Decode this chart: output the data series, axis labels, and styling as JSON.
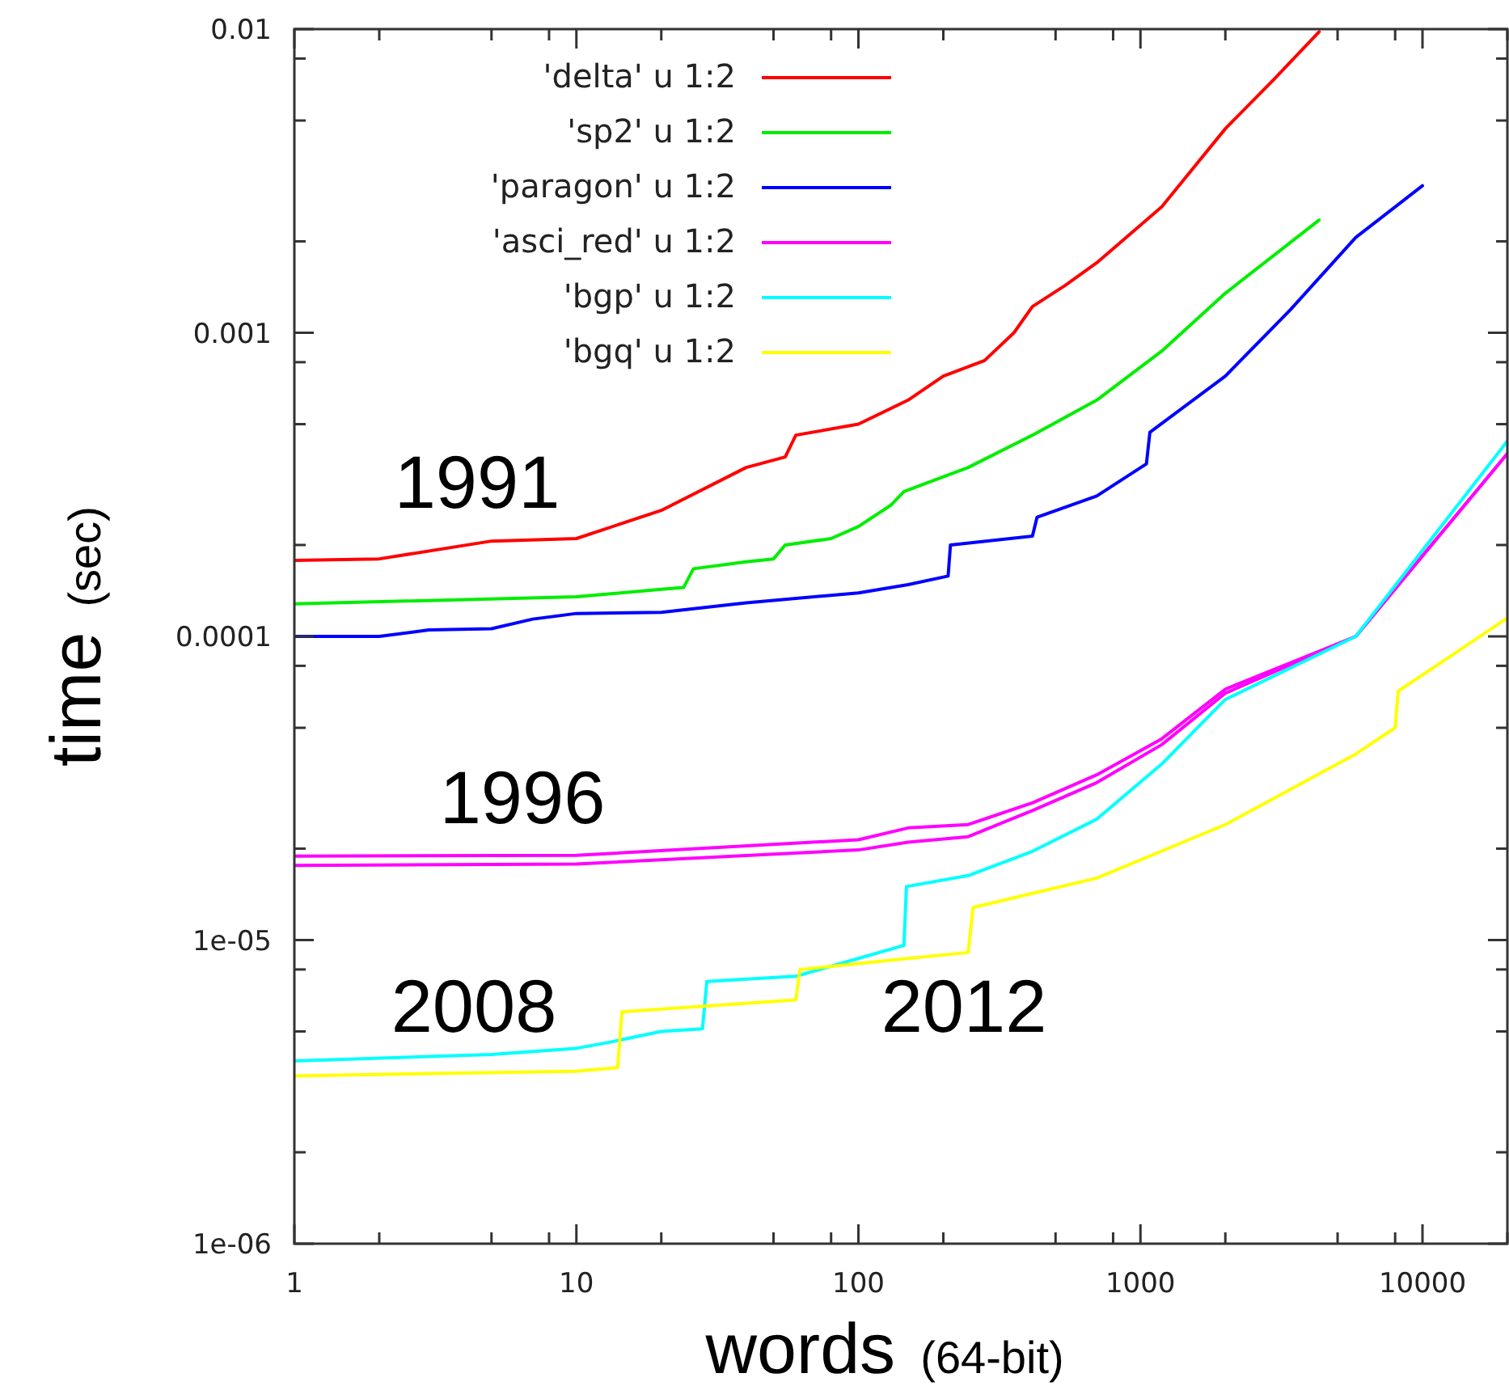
{
  "chart_data": {
    "type": "line",
    "xlabel": "words  (64-bit)",
    "ylabel": "time  (sec)",
    "log": "xy",
    "legend": "top left",
    "line_style": "solid",
    "xlim": [
      1,
      20000
    ],
    "ylim": [
      1e-06,
      0.01
    ],
    "xticks": [
      1,
      {
        "value": 2,
        "label": null
      },
      {
        "value": 5,
        "label": null
      },
      {
        "value": 8,
        "label": null
      },
      10,
      {
        "value": 20,
        "label": null
      },
      {
        "value": 50,
        "label": null
      },
      {
        "value": 80,
        "label": null
      },
      100,
      {
        "value": 200,
        "label": null
      },
      {
        "value": 500,
        "label": null
      },
      {
        "value": 800,
        "label": null
      },
      1000,
      {
        "value": 2000,
        "label": null
      },
      {
        "value": 5000,
        "label": null
      },
      {
        "value": 8000,
        "label": null
      },
      10000,
      {
        "value": 20000,
        "label": null
      }
    ],
    "yticks": [
      {
        "value": 1e-06,
        "label": "1e-06"
      },
      {
        "value": 2e-06,
        "label": null
      },
      {
        "value": 5e-06,
        "label": null
      },
      {
        "value": 8e-06,
        "label": null
      },
      {
        "value": 1e-05,
        "label": "1e-05"
      },
      {
        "value": 2e-05,
        "label": null
      },
      {
        "value": 5e-05,
        "label": null
      },
      {
        "value": 8e-05,
        "label": null
      },
      {
        "value": 0.0001,
        "label": "0.0001"
      },
      {
        "value": 0.0002,
        "label": null
      },
      {
        "value": 0.0005,
        "label": null
      },
      {
        "value": 0.0008,
        "label": null
      },
      {
        "value": 0.001,
        "label": "0.001"
      },
      {
        "value": 0.002,
        "label": null
      },
      {
        "value": 0.005,
        "label": null
      },
      {
        "value": 0.008,
        "label": null
      },
      {
        "value": 0.01,
        "label": "0.01"
      }
    ],
    "annotations": [
      "1991",
      "1996",
      "2008",
      "2012"
    ],
    "series": [
      {
        "name": "'delta' u 1:2",
        "color": "#ff0000",
        "x": [
          1,
          2,
          5,
          10,
          20,
          40,
          55,
          60,
          100,
          150,
          200,
          280,
          356,
          414,
          540,
          700,
          1190,
          2000,
          2960,
          4300
        ],
        "values": [
          0.000178,
          0.00018,
          0.000206,
          0.00021,
          0.00026,
          0.00036,
          0.00039,
          0.00046,
          0.0005,
          0.0006,
          0.00072,
          0.00081,
          0.001,
          0.00122,
          0.00143,
          0.0017,
          0.0026,
          0.0047,
          0.0068,
          0.0098
        ]
      },
      {
        "name": "'sp2' u 1:2",
        "color": "#00ee00",
        "x": [
          1,
          10,
          20,
          24,
          26,
          40,
          50,
          55,
          80,
          100,
          130,
          145,
          245,
          414,
          700,
          1190,
          2000,
          4300
        ],
        "values": [
          0.000128,
          0.000135,
          0.000143,
          0.000145,
          0.000167,
          0.000176,
          0.00018,
          0.0002,
          0.00021,
          0.00023,
          0.00027,
          0.0003,
          0.00036,
          0.00046,
          0.0006,
          0.00087,
          0.00135,
          0.00235
        ]
      },
      {
        "name": "'paragon' u 1:2",
        "color": "#0000ff",
        "x": [
          1,
          2,
          3,
          5,
          7,
          10,
          20,
          40,
          100,
          150,
          208,
          212,
          414,
          430,
          700,
          1050,
          1080,
          2000,
          3400,
          5800,
          10000
        ],
        "values": [
          0.0001,
          0.0001,
          0.000105,
          0.000106,
          0.000114,
          0.000119,
          0.00012,
          0.000129,
          0.000139,
          0.000148,
          0.000158,
          0.0002,
          0.000214,
          0.000247,
          0.00029,
          0.00037,
          0.00047,
          0.00072,
          0.00119,
          0.00206,
          0.00305
        ]
      },
      {
        "name": "'asci_red' u 1:2",
        "color": "#ff00ff",
        "x": [
          1,
          10,
          100,
          150,
          245,
          414,
          700,
          1190,
          2000,
          5800,
          20000
        ],
        "values": [
          1.89e-05,
          1.9e-05,
          2.14e-05,
          2.34e-05,
          2.4e-05,
          2.83e-05,
          3.5e-05,
          4.6e-05,
          6.7e-05,
          0.0001,
          0.0004
        ]
      },
      {
        "color": "#ff00ff",
        "x": [
          1,
          10,
          100,
          150,
          245,
          414,
          700,
          1190,
          2000,
          5800,
          20000
        ],
        "values": [
          1.76e-05,
          1.78e-05,
          1.98e-05,
          2.1e-05,
          2.19e-05,
          2.67e-05,
          3.3e-05,
          4.4e-05,
          6.5e-05,
          0.0001,
          0.0004
        ]
      },
      {
        "name": "'bgp' u 1:2",
        "color": "#00ffff",
        "x": [
          1,
          5,
          10,
          13,
          20,
          28,
          29,
          60,
          100,
          145,
          148,
          245,
          414,
          700,
          1190,
          2000,
          5800,
          20000
        ],
        "values": [
          4e-06,
          4.2e-06,
          4.4e-06,
          4.6e-06,
          5e-06,
          5.1e-06,
          7.3e-06,
          7.6e-06,
          8.7e-06,
          9.6e-06,
          1.5e-05,
          1.63e-05,
          1.96e-05,
          2.5e-05,
          3.8e-05,
          6.2e-05,
          0.0001,
          0.00044
        ]
      },
      {
        "name": "'bgq' u 1:2",
        "color": "#ffff00",
        "x": [
          1,
          10,
          14,
          14.5,
          60,
          62,
          150,
          245,
          255,
          700,
          2000,
          5800,
          8000,
          8200,
          12800,
          20000
        ],
        "values": [
          3.57e-06,
          3.7e-06,
          3.8e-06,
          5.8e-06,
          6.35e-06,
          8e-06,
          8.7e-06,
          9.1e-06,
          1.28e-05,
          1.6e-05,
          2.4e-05,
          4.1e-05,
          5e-05,
          6.6e-05,
          8.7e-05,
          0.000115
        ]
      }
    ]
  }
}
